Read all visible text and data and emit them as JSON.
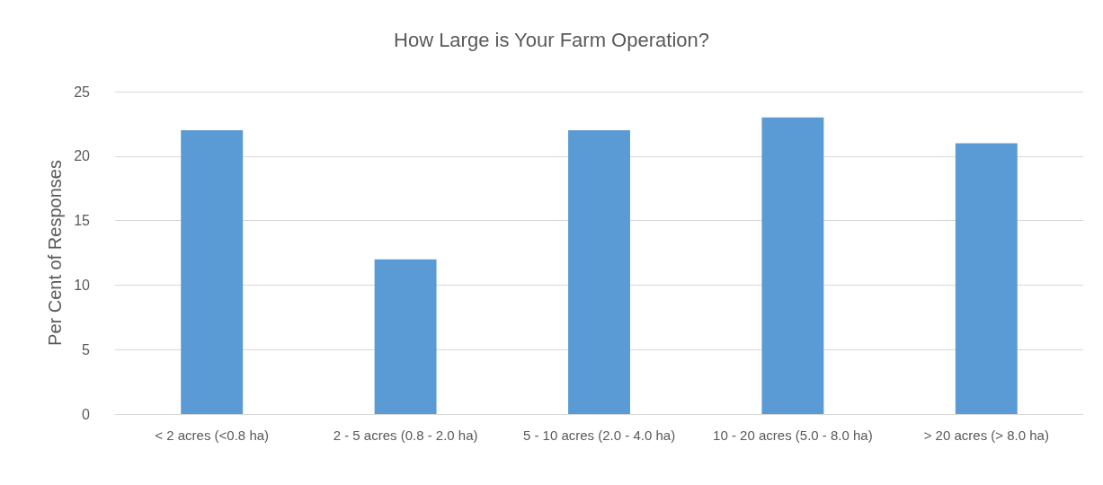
{
  "chart_data": {
    "type": "bar",
    "title": "How Large is Your Farm Operation?",
    "ylabel": "Per Cent of Responses",
    "categories": [
      "< 2 acres (<0.8 ha)",
      "2 - 5 acres (0.8 - 2.0 ha)",
      "5 - 10 acres (2.0 - 4.0 ha)",
      "10 - 20 acres (5.0 - 8.0 ha)",
      "> 20 acres (> 8.0 ha)"
    ],
    "values": [
      22,
      12,
      22,
      23,
      21
    ],
    "color": "#5b9bd5",
    "ylim": [
      0,
      25
    ],
    "yticks": [
      0,
      5,
      10,
      15,
      20,
      25
    ],
    "grid": "y"
  }
}
